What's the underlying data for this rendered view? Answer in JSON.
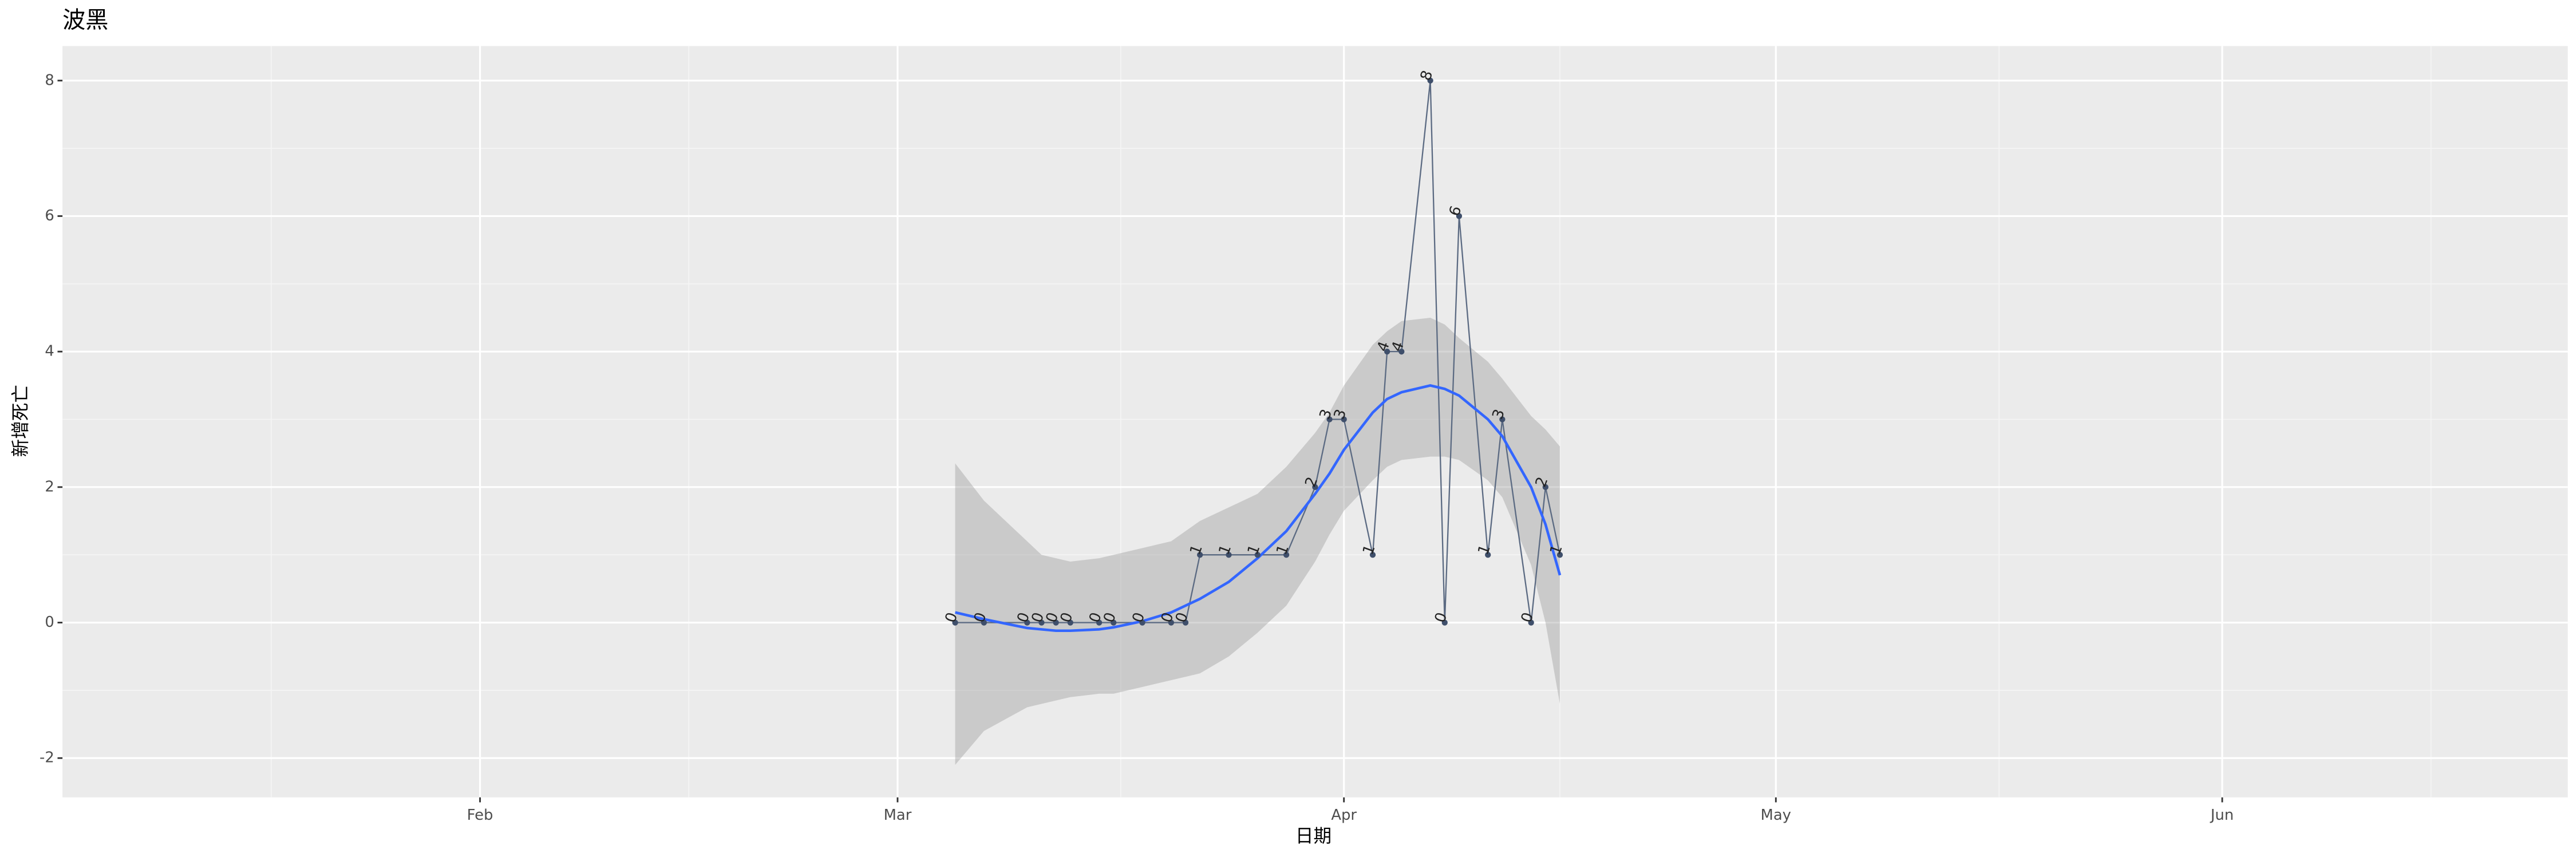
{
  "chart_data": {
    "type": "line",
    "title": "波黑",
    "x_label": "日期",
    "y_label": "新增死亡",
    "x": [
      "03-05",
      "03-07",
      "03-10",
      "03-11",
      "03-12",
      "03-13",
      "03-15",
      "03-16",
      "03-18",
      "03-20",
      "03-21",
      "03-22",
      "03-24",
      "03-26",
      "03-28",
      "03-30",
      "03-31",
      "04-01",
      "04-03",
      "04-04",
      "04-05",
      "04-07",
      "04-08",
      "04-09",
      "04-11",
      "04-12",
      "04-14",
      "04-15",
      "04-16"
    ],
    "values": [
      0,
      0,
      0,
      0,
      0,
      0,
      0,
      0,
      0,
      0,
      0,
      1,
      1,
      1,
      1,
      2,
      3,
      3,
      1,
      4,
      4,
      8,
      0,
      6,
      1,
      3,
      0,
      2,
      1
    ],
    "smooth_values": [
      0.15,
      0.05,
      -0.08,
      -0.1,
      -0.12,
      -0.12,
      -0.1,
      -0.07,
      0.02,
      0.15,
      0.25,
      0.35,
      0.6,
      0.95,
      1.35,
      1.9,
      2.2,
      2.55,
      3.1,
      3.3,
      3.4,
      3.5,
      3.45,
      3.35,
      3.0,
      2.75,
      2.0,
      1.45,
      0.7
    ],
    "smooth_upper": [
      2.35,
      1.8,
      1.2,
      1.0,
      0.95,
      0.9,
      0.95,
      1.0,
      1.1,
      1.2,
      1.35,
      1.5,
      1.7,
      1.9,
      2.3,
      2.8,
      3.1,
      3.5,
      4.1,
      4.3,
      4.45,
      4.5,
      4.4,
      4.2,
      3.85,
      3.6,
      3.05,
      2.85,
      2.6
    ],
    "smooth_lower": [
      -2.1,
      -1.6,
      -1.25,
      -1.2,
      -1.15,
      -1.1,
      -1.05,
      -1.05,
      -0.95,
      -0.85,
      -0.8,
      -0.75,
      -0.5,
      -0.15,
      0.25,
      0.9,
      1.3,
      1.65,
      2.1,
      2.3,
      2.4,
      2.45,
      2.45,
      2.4,
      2.1,
      1.85,
      0.85,
      0.0,
      -1.2
    ],
    "color": "#5b6a82",
    "point_color": "#3f4f6b",
    "smooth_color": "#3366ff",
    "band_color": "#999999",
    "xlim": [
      "01-03",
      "06-25"
    ],
    "xticks": [
      {
        "value": "02-01",
        "label": "Feb"
      },
      {
        "value": "03-01",
        "label": "Mar"
      },
      {
        "value": "04-01",
        "label": "Apr"
      },
      {
        "value": "05-01",
        "label": "May"
      },
      {
        "value": "06-01",
        "label": "Jun"
      }
    ],
    "ylim": [
      -2.58,
      8.51
    ],
    "yticks": [
      -2,
      0,
      2,
      4,
      6,
      8
    ],
    "grid": true
  }
}
